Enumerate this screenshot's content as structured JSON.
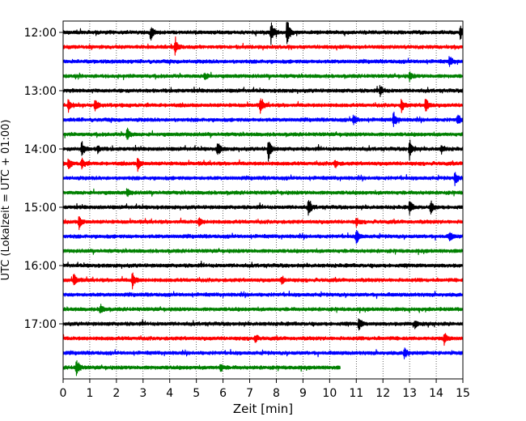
{
  "chart_data": {
    "type": "line",
    "subtype": "helicorder",
    "title": "",
    "xlabel": "Zeit  [min]",
    "ylabel": "UTC (Lokalzeit = UTC + 01:00)",
    "xlim": [
      0,
      15
    ],
    "x_ticks": [
      "0",
      "1",
      "2",
      "3",
      "4",
      "5",
      "6",
      "7",
      "8",
      "9",
      "10",
      "11",
      "12",
      "13",
      "14",
      "15"
    ],
    "y_ticks": [
      "12:00",
      "13:00",
      "14:00",
      "15:00",
      "16:00",
      "17:00"
    ],
    "grid": "vertical dotted lines at each minute",
    "legend": "none",
    "trace_interval_minutes": 15,
    "trace_colors": [
      "#000000",
      "#ff0000",
      "#0000ff",
      "#008000"
    ],
    "traces": [
      {
        "start": "12:00",
        "end_min": 15,
        "events": [
          [
            3.3,
            0.5
          ],
          [
            7.8,
            0.9
          ],
          [
            8.4,
            1.3
          ],
          [
            14.9,
            0.5
          ]
        ]
      },
      {
        "start": "12:15",
        "end_min": 15,
        "events": [
          [
            4.2,
            0.6
          ]
        ]
      },
      {
        "start": "12:30",
        "end_min": 15,
        "events": [
          [
            14.5,
            0.4
          ]
        ]
      },
      {
        "start": "12:45",
        "end_min": 15,
        "events": [
          [
            5.3,
            0.3
          ],
          [
            13.0,
            0.3
          ]
        ]
      },
      {
        "start": "13:00",
        "end_min": 15,
        "events": [
          [
            11.9,
            0.4
          ]
        ]
      },
      {
        "start": "13:15",
        "end_min": 15,
        "events": [
          [
            0.2,
            0.5
          ],
          [
            1.2,
            0.5
          ],
          [
            7.4,
            0.6
          ],
          [
            12.7,
            0.5
          ],
          [
            13.6,
            0.6
          ]
        ]
      },
      {
        "start": "13:30",
        "end_min": 15,
        "events": [
          [
            10.9,
            0.4
          ],
          [
            12.4,
            0.6
          ],
          [
            14.8,
            0.4
          ]
        ]
      },
      {
        "start": "13:45",
        "end_min": 15,
        "events": [
          [
            2.4,
            0.5
          ]
        ]
      },
      {
        "start": "14:00",
        "end_min": 15,
        "events": [
          [
            0.7,
            0.6
          ],
          [
            1.3,
            0.3
          ],
          [
            5.8,
            0.6
          ],
          [
            7.7,
            0.9
          ],
          [
            13.0,
            0.8
          ],
          [
            14.2,
            0.3
          ]
        ]
      },
      {
        "start": "14:15",
        "end_min": 15,
        "events": [
          [
            0.2,
            0.4
          ],
          [
            0.7,
            0.5
          ],
          [
            2.8,
            0.5
          ],
          [
            10.2,
            0.3
          ]
        ]
      },
      {
        "start": "14:30",
        "end_min": 15,
        "events": [
          [
            14.7,
            0.5
          ]
        ]
      },
      {
        "start": "14:45",
        "end_min": 15,
        "events": [
          [
            2.4,
            0.3
          ]
        ]
      },
      {
        "start": "15:00",
        "end_min": 15,
        "events": [
          [
            9.2,
            0.7
          ],
          [
            13.0,
            0.5
          ],
          [
            13.8,
            0.5
          ]
        ]
      },
      {
        "start": "15:15",
        "end_min": 15,
        "events": [
          [
            0.6,
            0.5
          ],
          [
            5.1,
            0.3
          ],
          [
            11.0,
            0.3
          ]
        ]
      },
      {
        "start": "15:30",
        "end_min": 15,
        "events": [
          [
            11.0,
            0.6
          ],
          [
            14.5,
            0.4
          ]
        ]
      },
      {
        "start": "15:45",
        "end_min": 15,
        "events": []
      },
      {
        "start": "16:00",
        "end_min": 15,
        "events": []
      },
      {
        "start": "16:15",
        "end_min": 15,
        "events": [
          [
            0.4,
            0.5
          ],
          [
            2.6,
            0.6
          ],
          [
            8.2,
            0.3
          ]
        ]
      },
      {
        "start": "16:30",
        "end_min": 15,
        "events": []
      },
      {
        "start": "16:45",
        "end_min": 15,
        "events": [
          [
            1.4,
            0.4
          ]
        ]
      },
      {
        "start": "17:00",
        "end_min": 15,
        "events": [
          [
            11.1,
            0.5
          ],
          [
            13.2,
            0.3
          ]
        ]
      },
      {
        "start": "17:15",
        "end_min": 15,
        "events": [
          [
            7.2,
            0.3
          ],
          [
            14.3,
            0.5
          ]
        ]
      },
      {
        "start": "17:30",
        "end_min": 15,
        "events": [
          [
            12.8,
            0.4
          ]
        ]
      },
      {
        "start": "17:45",
        "end_min": 10.4,
        "events": [
          [
            0.5,
            0.7
          ],
          [
            5.9,
            0.3
          ]
        ]
      }
    ]
  }
}
